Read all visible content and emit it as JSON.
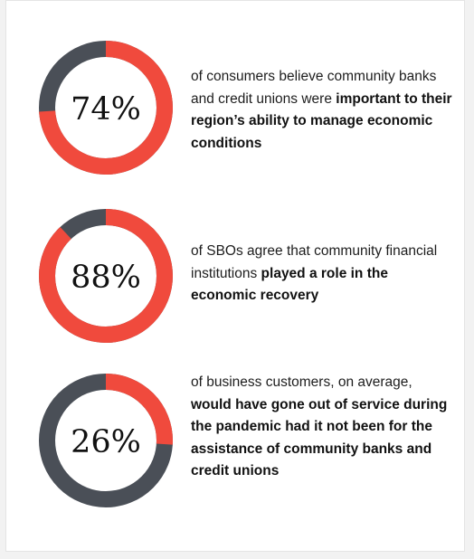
{
  "colors": {
    "accent": "#f04a3d",
    "remainder": "#4a4f57",
    "text": "#1d1d1d"
  },
  "chart_data": [
    {
      "type": "pie",
      "value": 74,
      "label": "74%",
      "text_lead": "of consumers believe community banks and credit unions were ",
      "text_bold": "important to their region’s ability to manage economic conditions"
    },
    {
      "type": "pie",
      "value": 88,
      "label": "88%",
      "text_lead": "of SBOs agree that community financial institutions ",
      "text_bold": "played a role in the economic recovery"
    },
    {
      "type": "pie",
      "value": 26,
      "label": "26%",
      "text_lead": "of business customers, on average, ",
      "text_bold": "would have gone out of service during the pandemic had it not been for the assistance of community banks and credit unions"
    }
  ]
}
